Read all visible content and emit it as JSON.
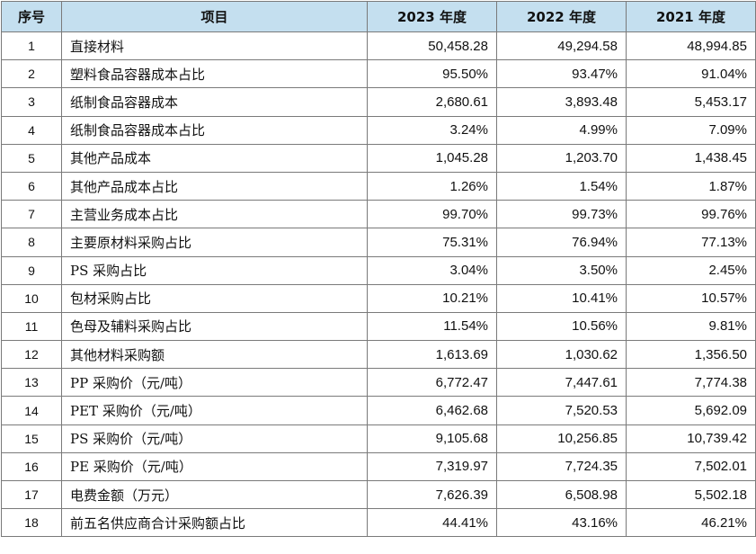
{
  "table": {
    "headers": [
      "序号",
      "项目",
      "2023 年度",
      "2022 年度",
      "2021 年度"
    ],
    "rows": [
      [
        "1",
        "直接材料",
        "50,458.28",
        "49,294.58",
        "48,994.85"
      ],
      [
        "2",
        "塑料食品容器成本占比",
        "95.50%",
        "93.47%",
        "91.04%"
      ],
      [
        "3",
        "纸制食品容器成本",
        "2,680.61",
        "3,893.48",
        "5,453.17"
      ],
      [
        "4",
        "纸制食品容器成本占比",
        "3.24%",
        "4.99%",
        "7.09%"
      ],
      [
        "5",
        "其他产品成本",
        "1,045.28",
        "1,203.70",
        "1,438.45"
      ],
      [
        "6",
        "其他产品成本占比",
        "1.26%",
        "1.54%",
        "1.87%"
      ],
      [
        "7",
        "主营业务成本占比",
        "99.70%",
        "99.73%",
        "99.76%"
      ],
      [
        "8",
        "主要原材料采购占比",
        "75.31%",
        "76.94%",
        "77.13%"
      ],
      [
        "9",
        "PS 采购占比",
        "3.04%",
        "3.50%",
        "2.45%"
      ],
      [
        "10",
        "包材采购占比",
        "10.21%",
        "10.41%",
        "10.57%"
      ],
      [
        "11",
        "色母及辅料采购占比",
        "11.54%",
        "10.56%",
        "9.81%"
      ],
      [
        "12",
        "其他材料采购额",
        "1,613.69",
        "1,030.62",
        "1,356.50"
      ],
      [
        "13",
        "PP 采购价（元/吨）",
        "6,772.47",
        "7,447.61",
        "7,774.38"
      ],
      [
        "14",
        "PET 采购价（元/吨）",
        "6,462.68",
        "7,520.53",
        "5,692.09"
      ],
      [
        "15",
        "PS 采购价（元/吨）",
        "9,105.68",
        "10,256.85",
        "10,739.42"
      ],
      [
        "16",
        "PE 采购价（元/吨）",
        "7,319.97",
        "7,724.35",
        "7,502.01"
      ],
      [
        "17",
        "电费金额（万元）",
        "7,626.39",
        "6,508.98",
        "5,502.18"
      ],
      [
        "18",
        "前五名供应商合计采购额占比",
        "44.41%",
        "43.16%",
        "46.21%"
      ]
    ]
  }
}
